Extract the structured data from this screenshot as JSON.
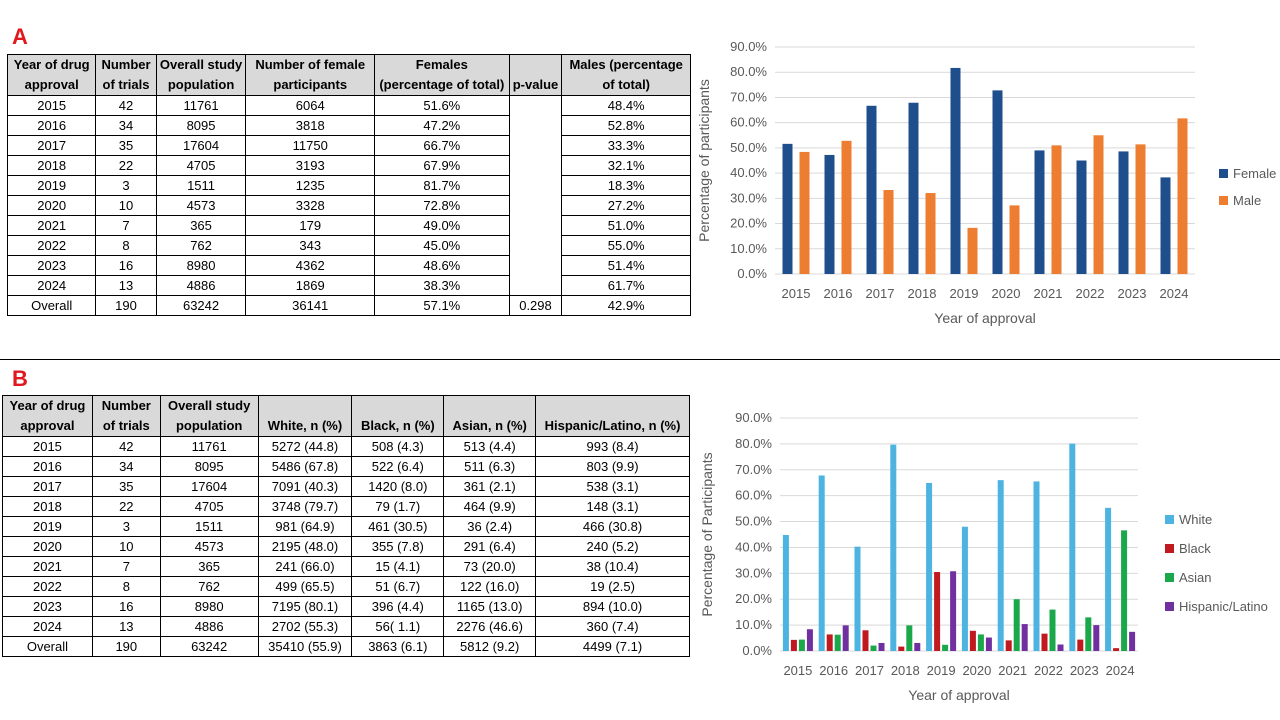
{
  "panel_a": {
    "letter": "A",
    "headers": [
      "Year of drug approval",
      "Number of trials",
      "Overall study population",
      "Number of female participants",
      "Females (percentage of total)",
      "p-value",
      "Males (percentage of total)"
    ],
    "rows": [
      [
        "2015",
        "42",
        "11761",
        "6064",
        "51.6%",
        "",
        "48.4%"
      ],
      [
        "2016",
        "34",
        "8095",
        "3818",
        "47.2%",
        "",
        "52.8%"
      ],
      [
        "2017",
        "35",
        "17604",
        "11750",
        "66.7%",
        "",
        "33.3%"
      ],
      [
        "2018",
        "22",
        "4705",
        "3193",
        "67.9%",
        "",
        "32.1%"
      ],
      [
        "2019",
        "3",
        "1511",
        "1235",
        "81.7%",
        "",
        "18.3%"
      ],
      [
        "2020",
        "10",
        "4573",
        "3328",
        "72.8%",
        "",
        "27.2%"
      ],
      [
        "2021",
        "7",
        "365",
        "179",
        "49.0%",
        "",
        "51.0%"
      ],
      [
        "2022",
        "8",
        "762",
        "343",
        "45.0%",
        "",
        "55.0%"
      ],
      [
        "2023",
        "16",
        "8980",
        "4362",
        "48.6%",
        "",
        "51.4%"
      ],
      [
        "2024",
        "13",
        "4886",
        "1869",
        "38.3%",
        "",
        "61.7%"
      ],
      [
        "Overall",
        "190",
        "63242",
        "36141",
        "57.1%",
        "0.298",
        "42.9%"
      ]
    ]
  },
  "panel_b": {
    "letter": "B",
    "headers": [
      "Year of drug approval",
      "Number of trials",
      "Overall study population",
      "White, n (%)",
      "Black, n (%)",
      "Asian, n (%)",
      "Hispanic/Latino, n (%)"
    ],
    "rows": [
      [
        "2015",
        "42",
        "11761",
        "5272 (44.8)",
        "508 (4.3)",
        "513 (4.4)",
        "993 (8.4)"
      ],
      [
        "2016",
        "34",
        "8095",
        "5486 (67.8)",
        "522 (6.4)",
        "511 (6.3)",
        "803 (9.9)"
      ],
      [
        "2017",
        "35",
        "17604",
        "7091 (40.3)",
        "1420 (8.0)",
        "361 (2.1)",
        "538 (3.1)"
      ],
      [
        "2018",
        "22",
        "4705",
        "3748 (79.7)",
        "79 (1.7)",
        "464 (9.9)",
        "148 (3.1)"
      ],
      [
        "2019",
        "3",
        "1511",
        "981 (64.9)",
        "461 (30.5)",
        "36 (2.4)",
        "466 (30.8)"
      ],
      [
        "2020",
        "10",
        "4573",
        "2195 (48.0)",
        "355 (7.8)",
        "291 (6.4)",
        "240 (5.2)"
      ],
      [
        "2021",
        "7",
        "365",
        "241 (66.0)",
        "15 (4.1)",
        "73 (20.0)",
        "38 (10.4)"
      ],
      [
        "2022",
        "8",
        "762",
        "499 (65.5)",
        "51 (6.7)",
        "122 (16.0)",
        "19 (2.5)"
      ],
      [
        "2023",
        "16",
        "8980",
        "7195 (80.1)",
        "396 (4.4)",
        "1165 (13.0)",
        "894 (10.0)"
      ],
      [
        "2024",
        "13",
        "4886",
        "2702 (55.3)",
        "56( 1.1)",
        "2276 (46.6)",
        "360 (7.4)"
      ],
      [
        "Overall",
        "190",
        "63242",
        "35410 (55.9)",
        "3863 (6.1)",
        "5812 (9.2)",
        "4499 (7.1)"
      ]
    ]
  },
  "chart_data": [
    {
      "type": "bar",
      "categories": [
        "2015",
        "2016",
        "2017",
        "2018",
        "2019",
        "2020",
        "2021",
        "2022",
        "2023",
        "2024"
      ],
      "series": [
        {
          "name": "Female",
          "color": "#1f4e8c",
          "values": [
            51.6,
            47.2,
            66.7,
            67.9,
            81.7,
            72.8,
            49.0,
            45.0,
            48.6,
            38.3
          ]
        },
        {
          "name": "Male",
          "color": "#ed7d31",
          "values": [
            48.4,
            52.8,
            33.3,
            32.1,
            18.3,
            27.2,
            51.0,
            55.0,
            51.4,
            61.7
          ]
        }
      ],
      "title": "",
      "xlabel": "Year of approval",
      "ylabel": "Percentage of participants",
      "ylim": [
        0,
        90
      ],
      "yticks": [
        "0.0%",
        "10.0%",
        "20.0%",
        "30.0%",
        "40.0%",
        "50.0%",
        "60.0%",
        "70.0%",
        "80.0%",
        "90.0%"
      ],
      "grid": true,
      "legend": "right"
    },
    {
      "type": "bar",
      "categories": [
        "2015",
        "2016",
        "2017",
        "2018",
        "2019",
        "2020",
        "2021",
        "2022",
        "2023",
        "2024"
      ],
      "series": [
        {
          "name": "White",
          "color": "#4db3e0",
          "values": [
            44.8,
            67.8,
            40.3,
            79.7,
            64.9,
            48.0,
            66.0,
            65.5,
            80.1,
            55.3
          ]
        },
        {
          "name": "Black",
          "color": "#c0191f",
          "values": [
            4.3,
            6.4,
            8.0,
            1.7,
            30.5,
            7.8,
            4.1,
            6.7,
            4.4,
            1.1
          ]
        },
        {
          "name": "Asian",
          "color": "#1aa84a",
          "values": [
            4.4,
            6.3,
            2.1,
            9.9,
            2.4,
            6.4,
            20.0,
            16.0,
            13.0,
            46.6
          ]
        },
        {
          "name": "Hispanic/Latino",
          "color": "#7030a0",
          "values": [
            8.4,
            9.9,
            3.1,
            3.1,
            30.8,
            5.2,
            10.4,
            2.5,
            10.0,
            7.4
          ]
        }
      ],
      "title": "",
      "xlabel": "Year of approval",
      "ylabel": "Percentage of Participants",
      "ylim": [
        0,
        90
      ],
      "yticks": [
        "0.0%",
        "10.0%",
        "20.0%",
        "30.0%",
        "40.0%",
        "50.0%",
        "60.0%",
        "70.0%",
        "80.0%",
        "90.0%"
      ],
      "grid": true,
      "legend": "right"
    }
  ]
}
